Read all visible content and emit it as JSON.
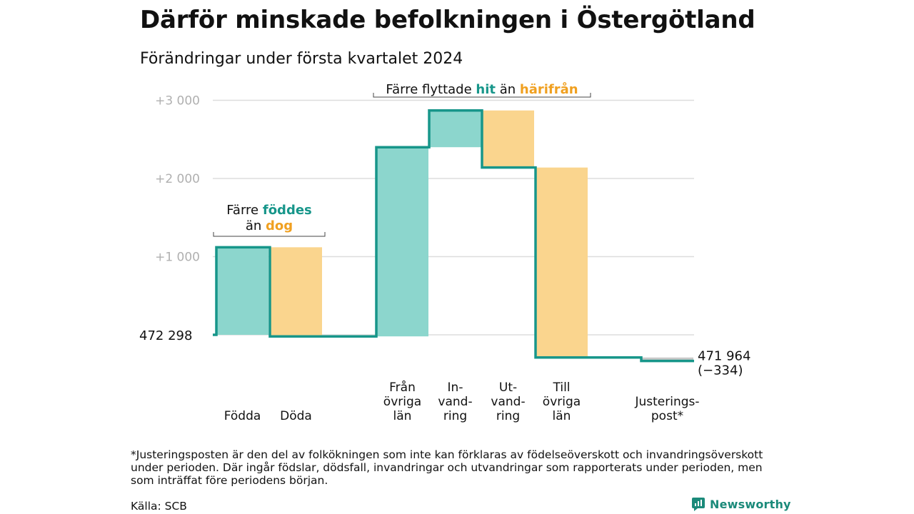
{
  "title": "Därför minskade befolkningen i Östergötland",
  "subtitle": "Förändringar under första kvartalet 2024",
  "footnote": "*Justeringsposten är den del av folkökningen som inte kan förklaras av födelseöverskott och invandringsöverskott under perioden. Där ingår födslar, dödsfall, invandringar och utvandringar som rapporterats under perioden, men som inträffat före periodens början.",
  "source": "Källa: SCB",
  "brand": "Newsworthy",
  "colors": {
    "increase": "#8cd6cd",
    "decrease": "#fad58e",
    "line": "#17968a",
    "hit_text": "#17968a",
    "harifran_text": "#f0a020",
    "grid": "#dddddd",
    "adjust": "#c8c8c8"
  },
  "chart_data": {
    "type": "bar",
    "subtype": "waterfall",
    "start_value": 472298,
    "start_label": "472   298",
    "end_value": 471964,
    "end_label": "471 964",
    "end_change_label": "(−334)",
    "y_ticks": [
      {
        "value": 1000,
        "label": "+1   000"
      },
      {
        "value": 2000,
        "label": "+2   000"
      },
      {
        "value": 3000,
        "label": "+3   000"
      }
    ],
    "ylim": [
      -400,
      3200
    ],
    "grid": true,
    "categories": [
      {
        "key": "fodda",
        "label_lines": [
          "Födda"
        ],
        "from": 0,
        "to": 1120,
        "kind": "increase"
      },
      {
        "key": "doda",
        "label_lines": [
          "Döda"
        ],
        "from": 1120,
        "to": -20,
        "kind": "decrease"
      },
      {
        "key": "fran_ovriga_lan",
        "label_lines": [
          "Från",
          "övriga",
          "län"
        ],
        "from": -20,
        "to": 2400,
        "kind": "increase"
      },
      {
        "key": "invandring",
        "label_lines": [
          "In-",
          "vand-",
          "ring"
        ],
        "from": 2400,
        "to": 2870,
        "kind": "increase"
      },
      {
        "key": "utvandring",
        "label_lines": [
          "Ut-",
          "vand-",
          "ring"
        ],
        "from": 2870,
        "to": 2140,
        "kind": "decrease"
      },
      {
        "key": "till_ovriga_lan",
        "label_lines": [
          "Till",
          "övriga",
          "län"
        ],
        "from": 2140,
        "to": -290,
        "kind": "decrease"
      },
      {
        "key": "justeringspost",
        "label_lines": [
          "Justerings-",
          "post*"
        ],
        "from": -290,
        "to": -334,
        "kind": "adjust"
      }
    ],
    "annotations": [
      {
        "key": "births",
        "line1": {
          "prefix": "Färre ",
          "highlight": "föddes",
          "color": "hit_text"
        },
        "line2": {
          "prefix": "än ",
          "highlight": "dog",
          "color": "harifran_text"
        },
        "span": [
          "fodda",
          "doda"
        ]
      },
      {
        "key": "migration",
        "prefix": "Färre flyttade ",
        "hit": "hit",
        "middle": " än ",
        "harifran": "härifrån",
        "span": [
          "fran_ovriga_lan",
          "till_ovriga_lan"
        ]
      }
    ]
  }
}
